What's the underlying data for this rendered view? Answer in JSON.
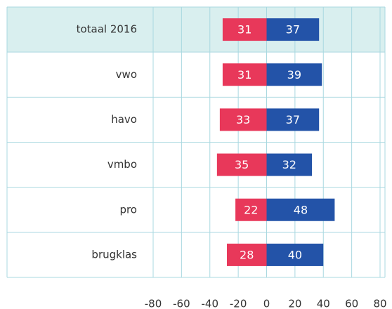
{
  "chart_data": {
    "type": "diverging_bar",
    "categories": [
      "totaal 2016",
      "vwo",
      "havo",
      "vmbo",
      "pro",
      "brugklas"
    ],
    "series": [
      {
        "color": "#e8385a",
        "values": [
          -31,
          -31,
          -33,
          -35,
          -22,
          -28
        ],
        "value_labels": [
          "31",
          "31",
          "33",
          "35",
          "22",
          "28"
        ]
      },
      {
        "color": "#2353a8",
        "values": [
          37,
          39,
          37,
          32,
          48,
          40
        ]
      }
    ],
    "xlim": [
      -80,
      80
    ],
    "xticks": [
      -80,
      -60,
      -40,
      -20,
      0,
      20,
      40,
      60,
      80
    ],
    "grid": true,
    "grid_color": "#a9d8e0",
    "highlight": 0,
    "highlight_color": "#d9efef"
  }
}
